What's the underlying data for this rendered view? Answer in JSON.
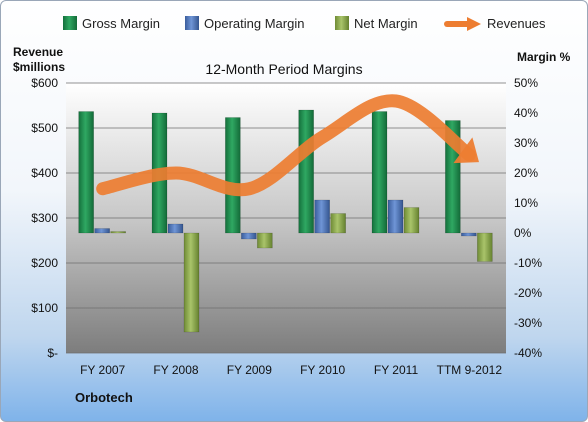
{
  "chart_data": {
    "type": "bar",
    "title": "12-Month Period Margins",
    "company": "Orbotech",
    "left_axis_label_line1": "Revenue",
    "left_axis_label_line2": "$millions",
    "right_axis_label": "Margin %",
    "categories": [
      "FY 2007",
      "FY 2008",
      "FY 2009",
      "FY 2010",
      "FY 2011",
      "TTM 9-2012"
    ],
    "left_ylim": [
      0,
      600
    ],
    "left_ticks": [
      "$-",
      "$100",
      "$200",
      "$300",
      "$400",
      "$500",
      "$600"
    ],
    "right_ylim": [
      -40,
      50
    ],
    "right_ticks": [
      "-40%",
      "-30%",
      "-20%",
      "-10%",
      "0%",
      "10%",
      "20%",
      "30%",
      "40%",
      "50%"
    ],
    "legend_placement": "top",
    "series": [
      {
        "name": "Gross Margin",
        "axis": "right",
        "values": [
          40.5,
          40,
          38.5,
          41,
          40.5,
          37.5
        ],
        "color": "#1e8a4c"
      },
      {
        "name": "Operating Margin",
        "axis": "right",
        "values": [
          1.5,
          3,
          -2,
          11,
          11,
          -1
        ],
        "color": "#4a72b8"
      },
      {
        "name": "Net Margin",
        "axis": "right",
        "values": [
          0.5,
          -33,
          -5,
          6.5,
          8.5,
          -9.5
        ],
        "color": "#8fae4c"
      },
      {
        "name": "Revenues",
        "axis": "left",
        "type": "line",
        "values": [
          365,
          400,
          365,
          480,
          560,
          440
        ],
        "color": "#ed7d31"
      }
    ],
    "grid": true
  }
}
